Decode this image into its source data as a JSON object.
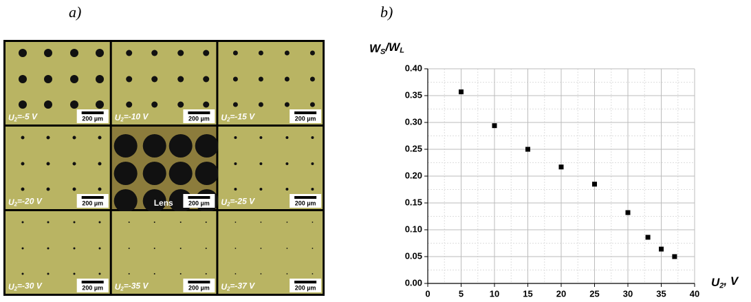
{
  "panel_labels": [
    "a)",
    "b)"
  ],
  "micrographs": [
    {
      "label": [
        "U",
        "2",
        "=-5 V"
      ],
      "scale_bar": "200 µm"
    },
    {
      "label": [
        "U",
        "2",
        "=-10 V"
      ],
      "scale_bar": "200 µm"
    },
    {
      "label": [
        "U",
        "2",
        "=-15 V"
      ],
      "scale_bar": "200 µm"
    },
    {
      "label": [
        "U",
        "2",
        "=-20 V"
      ],
      "scale_bar": "200 µm"
    },
    {
      "caption": "Lens",
      "scale_bar": "200 µm"
    },
    {
      "label": [
        "U",
        "2",
        "=-25 V"
      ],
      "scale_bar": "200 µm"
    },
    {
      "label": [
        "U",
        "2",
        "=-30 V"
      ],
      "scale_bar": "200 µm"
    },
    {
      "label": [
        "U",
        "2",
        "=-35 V"
      ],
      "scale_bar": "200 µm"
    },
    {
      "label": [
        "U",
        "2",
        "=-37 V"
      ],
      "scale_bar": "200 µm"
    }
  ],
  "chart_data": {
    "type": "scatter",
    "xlabel": [
      "U",
      "2",
      ", V"
    ],
    "ylabel": [
      "W",
      "S",
      "/W",
      "L"
    ],
    "x": [
      5,
      10,
      15,
      20,
      25,
      30,
      33,
      35,
      37
    ],
    "values": [
      0.357,
      0.294,
      0.25,
      0.217,
      0.185,
      0.132,
      0.086,
      0.064,
      0.05
    ],
    "color": "#000000",
    "xlim": [
      0,
      40
    ],
    "ylim": [
      0,
      0.4
    ],
    "xticks": [
      0,
      5,
      10,
      15,
      20,
      25,
      30,
      35,
      40
    ],
    "yticks": [
      {
        "value": 0,
        "label": "0.00"
      },
      {
        "value": 0.05,
        "label": "0.05"
      },
      {
        "value": 0.1,
        "label": "0.10"
      },
      {
        "value": 0.15,
        "label": "0.15"
      },
      {
        "value": 0.2,
        "label": "0.20"
      },
      {
        "value": 0.25,
        "label": "0.25"
      },
      {
        "value": 0.3,
        "label": "0.30"
      },
      {
        "value": 0.35,
        "label": "0.35"
      },
      {
        "value": 0.4,
        "label": "0.40"
      }
    ],
    "grid": true
  }
}
